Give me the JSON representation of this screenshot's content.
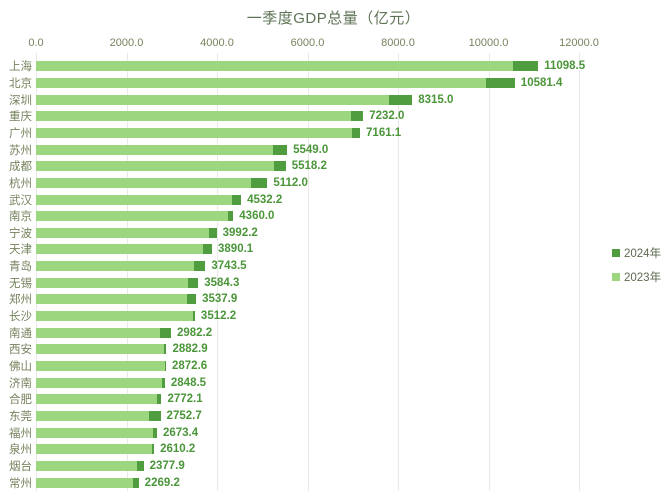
{
  "colors": {
    "background": "#FFFFFF",
    "bar_2024": "#4F9D3E",
    "bar_2023": "#9CD67E",
    "value_label": "#4A9639",
    "axis_text": "#75835E",
    "title_text": "#5E7355",
    "gridline": "#E9E9E9"
  },
  "legend": {
    "items": [
      {
        "label": "2024年",
        "color": "#4F9D3E"
      },
      {
        "label": "2023年",
        "color": "#9CD67E"
      }
    ]
  },
  "chart_data": {
    "type": "bar",
    "orientation": "horizontal",
    "title": "一季度GDP总量（亿元）",
    "unit": "亿元",
    "categories": [
      "上海",
      "北京",
      "深圳",
      "重庆",
      "广州",
      "苏州",
      "成都",
      "杭州",
      "武汉",
      "南京",
      "宁波",
      "天津",
      "青岛",
      "无锡",
      "郑州",
      "长沙",
      "南通",
      "西安",
      "佛山",
      "济南",
      "合肥",
      "东莞",
      "福州",
      "泉州",
      "烟台",
      "常州"
    ],
    "series": [
      {
        "name": "2024年",
        "color": "#4F9D3E",
        "data_labels": true,
        "values": [
          11098.5,
          10581.4,
          8315.0,
          7232.0,
          7161.1,
          5549.0,
          5518.2,
          5112.0,
          4532.2,
          4360.0,
          3992.2,
          3890.1,
          3743.5,
          3584.3,
          3537.9,
          3512.2,
          2982.2,
          2882.9,
          2872.6,
          2848.5,
          2772.1,
          2752.7,
          2673.4,
          2610.2,
          2377.9,
          2269.2
        ]
      },
      {
        "name": "2023年",
        "color": "#9CD67E",
        "estimated_from_pixels": true,
        "values": [
          10540,
          9950,
          7800,
          6960,
          6980,
          5240,
          5270,
          4750,
          4330,
          4240,
          3820,
          3690,
          3490,
          3360,
          3340,
          3460,
          2740,
          2830,
          2850,
          2780,
          2670,
          2500,
          2590,
          2560,
          2230,
          2150
        ]
      }
    ],
    "x_axis": {
      "position": "top",
      "range": [
        0,
        12000
      ],
      "ticks": [
        0,
        2000,
        4000,
        6000,
        8000,
        10000,
        12000
      ],
      "tick_labels": [
        "0.0",
        "2000.0",
        "4000.0",
        "6000.0",
        "8000.0",
        "10000.0",
        "12000.0"
      ]
    },
    "grid": true,
    "legend_position": "right"
  }
}
